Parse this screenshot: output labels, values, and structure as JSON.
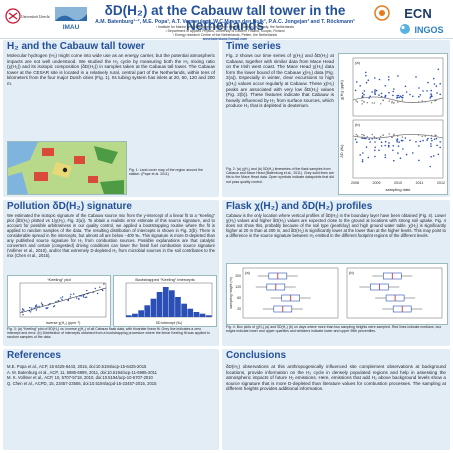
{
  "header": {
    "title": "δD(H₂) at the Cabauw tall tower in the Netherlands",
    "authors": "A.M. Batenburg¹⁻², M.E. Popa¹, A.T. Vermeulen³, W.C.M. van den Bulk³, P.A.C. Jongejan³ and T. Röckmann¹",
    "aff1": "¹ Institute for Marine and Atmospheric Research Utrecht, Utrecht University, the Netherlands",
    "aff2": "² Department of Applied Physics, University of Eastern Finland, Kuopio, Finland",
    "aff3": "³ Energy research Centre of the Netherlands, Petten, the Netherlands",
    "email": "annebatenburg@gmail.com",
    "logo_uu": "Universiteit Utrecht",
    "logo_imau": "IMAU",
    "logo_ecn": "ECN",
    "logo_ingos": "INGOS"
  },
  "panels": {
    "intro": {
      "title": "H₂ and the Cabauw tall tower",
      "text": "Molecular hydrogen (H₂) might come into wide use as an energy carrier, but the potential atmospheric impacts are not well understood. We studied the H₂ cycle by measuring both the H₂ mixing ratio (χ(H₂)) and its isotopic composition (δD(H₂)) in samples taken at the Cabauw tall tower. The Cabauw tower at the CESAR site is located in a relatively rural, central part of the Netherlands, within tens of kilometers from the four major Dutch cities (Fig. 1). Its tubing system has inlets at 20, 60, 120 and 200 m.",
      "fig1_caption": "Fig. 1: Land cover map of the region around the station. (Pape et al. 2011)"
    },
    "timeseries": {
      "title": "Time series",
      "text": "Fig. 2 shows our time series of χ(H₂) and δD(H₂) at Cabauw, together with similar data from Mace Head on the Irish west coast. The Mace Head χ(H₂) data form the lower bound of the Cabauw χ(H₂) data (Fig. 2(a)). Especially in winter, clear excursions to high χ(H₂) values occur regularly at Cabauw. These χ(H₂) peaks are associated with very low δD(H₂) values (Fig. 2(b)). These features indicate that Cabauw is heavily influenced by H₂ from surface sources, which produce H₂ that is depleted in deuterium.",
      "fig2_caption": "Fig. 2: (a) χ(H₂) and (b) δD(H₂) timeseries of the flask samples from Cabauw and Mace Head (Batenburg et al., 2011). Grey solid lines are fits to the Mace Head data. Open symbols indicate datapoints that did not pass quality control.",
      "fig2_xlabel": "sampling date",
      "fig2_xticks": [
        "2008",
        "2009",
        "2010",
        "2011",
        "2012"
      ],
      "fig2_ylabel_a": "χ(H₂) (ppb)",
      "fig2_ylabel_b": "δD (‰)"
    },
    "pollution": {
      "title": "Pollution δD(H₂) signature",
      "text": "We estimated the isotopic signature of the Cabauw source mix from the y-intercept of a linear fit to a “Keeling” plot (δD(H₂) plotted vs 1/χ(H₂), Fig. 3(a)). To obtain a realistic error estimate of this source signature, and to account for possible arbitrariness in our quality control, we applied a bootstrapping routine where the fit is applied to random samples of the data. The resulting distribution of intercepts is shown in Fig. 3(b). There is considerable spread in the intercepts, but almost all are below −400 ‰. This signature is more D-depleted than any published source signature for H₂ from combustion sources. Possible explanations are that catalytic converters and certain (congested) driving conditions can lower the fossil fuel combustion source signature (Vollmer et al., 2010), and/or that extremely D-depleted H₂ from microbial sources in the soil contributes to the mix (Chen et al., 2015).",
      "fig3a_title": "“Keeling” plot",
      "fig3a_xlabel": "Inverse χ(H₂) (ppm⁻¹)",
      "fig3b_title": "Bootstrapped “Keeling” intercepts",
      "fig3b_xlabel": "δD intercept (‰)",
      "fig3_caption": "Fig. 3: (a) “Keeling” plot of δD(H₂) vs. inverse χ(H₂) of all Cabauw flask data, with bivariate linear fit. Grey line indicates a zero intercept and error. (b) Distribution of intercepts obtained from a bootstrapping procedure where the linear Keeling fit was applied to random samples of the data."
    },
    "flask": {
      "title": "Flask χ(H₂) and δD(H₂) profiles",
      "text": "Cabauw is the only location where vertical profiles of δD(H₂) in the boundary layer have been obtained (Fig. 4). Lower χ(H₂) values and higher δD(H₂) values are expected close to the ground at locations with strong soil uptake. Fig. 4 does not show this, probably because of the soil type (peat/clay) and high ground water table. χ(H₂) is significantly higher at 20 m than at 200 m, and δD(H₂) is significantly lower at the lower than at the higher levels. This may point to a difference in the source signature between H₂ emitted in the different footprint regions of the different levels.",
      "fig4_caption": "Fig. 4: Box plots of χ(H₂) (a) and δD(H₂) (b) on days where more than two sampling heights were sampled. Red lines indicate medians, box edges indicate lower and upper quartiles and whiskers indicate lower and upper 95th percentiles.",
      "fig4_ylabel": "sampling height (m)",
      "fig4_ticks": [
        "200",
        "120",
        "60",
        "20"
      ]
    },
    "references": {
      "title": "References",
      "items": [
        "M.E. Popa et al., ACP, 15 6425-6443, 2015, doi:10.5194/acp-15-6425-2015",
        "A. M. Batenburg et al., ACP, 11, 6985-6999, 2011, doi:10.5194/acp-11-6985-2011",
        "M. K. Vollmer et al., ACP, 10, 5707-5718, 2010, doi:10.5194/acp-10-5707-2010",
        "Q. Chen et al., ACPD, 15, 23457-23506, doi:10.5194/acpd-15-23457-2015, 2015"
      ]
    },
    "conclusions": {
      "title": "Conclusions",
      "text": "δD(H₂) observations at this anthropogenically influenced site complement observations at background locations, provide information on the H₂ cycle in densely populated regions and help in assessing the atmospheric impacts of future H₂ emissions. Here, emissions that add H₂ above background levels show a source signature that is more D-depleted than literature values for combustion processes. The sampling at different heights provides additional information."
    }
  },
  "colors": {
    "title_blue": "#23519a",
    "panel_bg": "#e3edf6",
    "series_cabauw": "#2b4fb5",
    "series_macehead": "#7a7a7a",
    "box_red": "#cc2222"
  }
}
